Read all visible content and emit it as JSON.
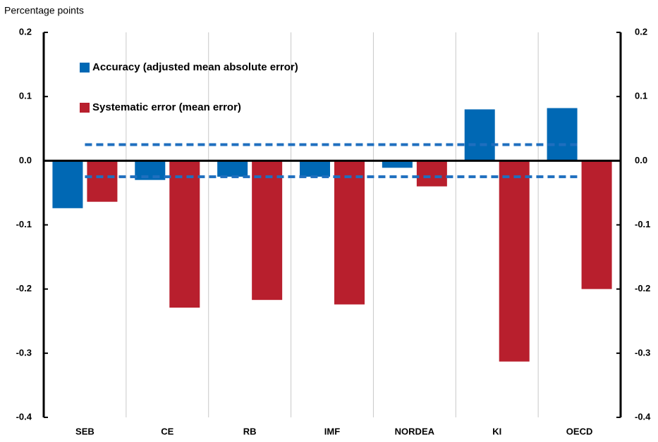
{
  "chart_data": {
    "type": "bar",
    "y_label": "Percentage points",
    "categories": [
      "SEB",
      "CE",
      "RB",
      "IMF",
      "NORDEA",
      "KI",
      "OECD"
    ],
    "series": [
      {
        "name": "Accuracy (adjusted mean absolute error)",
        "color": "#0068b4",
        "values": [
          -0.074,
          -0.03,
          -0.025,
          -0.025,
          -0.011,
          0.08,
          0.082
        ]
      },
      {
        "name": "Systematic error (mean error)",
        "color": "#b81f2d",
        "values": [
          -0.064,
          -0.229,
          -0.217,
          -0.224,
          -0.04,
          -0.313,
          -0.2
        ]
      }
    ],
    "reference_lines": [
      0.025,
      -0.025
    ],
    "reference_color": "#1f6fbf",
    "ylim": [
      -0.4,
      0.2
    ],
    "yticks": [
      0.2,
      0.1,
      {
        "value": 0,
        "label": "0.0"
      },
      -0.1,
      -0.2,
      -0.3,
      -0.4
    ],
    "y2lim": [
      -0.4,
      0.2
    ],
    "y2ticks": [
      0.2,
      0.1,
      {
        "value": 0,
        "label": "0.0"
      },
      -0.1,
      -0.2,
      -0.3,
      -0.4
    ],
    "legend": "upper left"
  }
}
